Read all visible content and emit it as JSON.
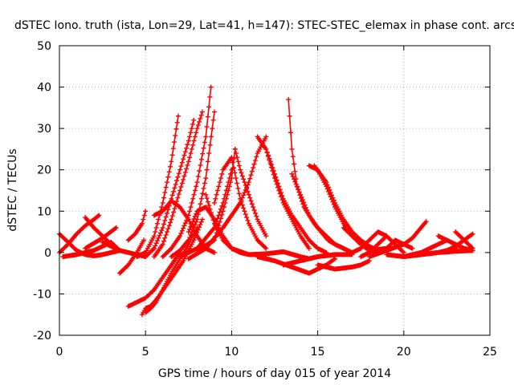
{
  "chart_data": {
    "type": "scatter",
    "title": "dSTEC Iono. truth (ista, Lon=29, Lat=41, h=147): STEC-STEC_elemax in phase cont. arcs",
    "xlabel": "GPS time / hours of day 015 of year 2014",
    "ylabel": "dSTEC  / TECUs",
    "xlim": [
      0,
      25
    ],
    "ylim": [
      -20,
      50
    ],
    "xticks": [
      "0",
      "5",
      "10",
      "15",
      "20",
      "25"
    ],
    "yticks": [
      "-20",
      "-10",
      "0",
      "10",
      "20",
      "30",
      "40",
      "50"
    ],
    "grid": true,
    "marker": "plus",
    "color": "#ff0000",
    "series": [
      {
        "x": [
          0.0,
          0.5,
          1.0,
          1.5,
          2.0,
          2.3
        ],
        "y": [
          0,
          2,
          4.5,
          6.5,
          8,
          9
        ]
      },
      {
        "x": [
          0.0,
          0.5,
          1.0,
          1.5,
          2.0,
          2.5,
          3.0,
          3.5
        ],
        "y": [
          4.5,
          2.5,
          0.5,
          -0.5,
          -0.8,
          -0.5,
          0,
          0.5
        ]
      },
      {
        "x": [
          1.5,
          2.0,
          2.5,
          3.0,
          3.5
        ],
        "y": [
          8.5,
          6,
          4,
          2,
          0.5
        ]
      },
      {
        "x": [
          0.2,
          1.0,
          2.0,
          2.5,
          3.0,
          3.5
        ],
        "y": [
          -1,
          -0.5,
          0.5,
          1.5,
          2.5,
          0.5
        ]
      },
      {
        "x": [
          1.5,
          2.5,
          3.3
        ],
        "y": [
          1,
          3.5,
          6
        ]
      },
      {
        "x": [
          3.5,
          4.0,
          4.5,
          4.9
        ],
        "y": [
          -5,
          -3,
          0,
          3
        ]
      },
      {
        "x": [
          2.5,
          3.0,
          3.5,
          4.0,
          4.5,
          5.0
        ],
        "y": [
          2.5,
          1.5,
          0.5,
          0,
          -0.5,
          -1
        ]
      },
      {
        "x": [
          4.0,
          4.4,
          4.8,
          5.0
        ],
        "y": [
          3,
          4.5,
          7,
          10
        ]
      },
      {
        "x": [
          4.0,
          4.5,
          5.0,
          5.5,
          6.0,
          6.5,
          7.0
        ],
        "y": [
          -13,
          -12,
          -11,
          -9,
          -6,
          -3,
          0
        ]
      },
      {
        "x": [
          4.8,
          5.0,
          5.3,
          5.7,
          6.2,
          6.7,
          7.2,
          7.8,
          8.3
        ],
        "y": [
          -15,
          -13.5,
          -13,
          -11,
          -8,
          -5,
          -2,
          3,
          8
        ]
      },
      {
        "x": [
          5.0,
          5.3,
          5.6,
          6.0,
          6.5,
          7.0,
          7.5,
          8.0
        ],
        "y": [
          -14.5,
          -13.5,
          -12,
          -9,
          -5,
          -1.5,
          2,
          6
        ]
      },
      {
        "x": [
          4.5,
          5.0,
          5.5,
          6.0,
          6.5,
          6.9
        ],
        "y": [
          -1,
          0,
          4,
          12,
          22,
          33
        ]
      },
      {
        "x": [
          5.0,
          5.5,
          6.0,
          6.5,
          7.0,
          7.5,
          7.8
        ],
        "y": [
          -1,
          1,
          6,
          13,
          20,
          27,
          32
        ]
      },
      {
        "x": [
          5.5,
          6.0,
          6.5,
          7.0,
          7.5,
          8.0,
          8.3
        ],
        "y": [
          -1,
          2,
          8,
          15,
          22,
          30,
          34
        ]
      },
      {
        "x": [
          6.0,
          6.5,
          7.0,
          7.5,
          8.0,
          8.5,
          8.8
        ],
        "y": [
          -1,
          1,
          4,
          9,
          17,
          28,
          40
        ]
      },
      {
        "x": [
          6.5,
          7.0,
          7.5,
          8.0,
          8.5,
          9.0
        ],
        "y": [
          -1,
          0.5,
          3,
          8,
          18,
          34
        ]
      },
      {
        "x": [
          5.5,
          6.0,
          6.5,
          7.0,
          7.5,
          8.0,
          8.5,
          9.0
        ],
        "y": [
          9,
          10,
          12.5,
          11,
          8,
          4,
          1,
          0
        ]
      },
      {
        "x": [
          7.5,
          8.0,
          8.5,
          9.0,
          9.5,
          10.0
        ],
        "y": [
          5,
          10,
          11,
          8,
          4,
          1
        ]
      },
      {
        "x": [
          8.5,
          9.0,
          9.5,
          10.0,
          10.5,
          11.0,
          11.5,
          12.0
        ],
        "y": [
          14,
          7,
          3,
          1,
          0,
          -0.5,
          -0.5,
          -0.3
        ]
      },
      {
        "x": [
          7.0,
          8.0,
          9.0,
          9.5,
          10.0
        ],
        "y": [
          -1,
          1,
          6,
          12,
          20
        ]
      },
      {
        "x": [
          7.5,
          8.5,
          9.5,
          10.5,
          11.0,
          11.5,
          12.0
        ],
        "y": [
          -1.5,
          1,
          6,
          12,
          17,
          24,
          28
        ]
      },
      {
        "x": [
          8.0,
          9.0,
          9.5,
          10.0,
          10.2
        ],
        "y": [
          0.5,
          3,
          10,
          18,
          25
        ]
      },
      {
        "x": [
          9.0,
          9.5,
          10.0,
          10.5,
          11.0,
          11.5,
          12.0
        ],
        "y": [
          12,
          20,
          23,
          13,
          7,
          3,
          1
        ]
      },
      {
        "x": [
          10.2,
          10.5,
          11.0,
          11.5,
          12.0
        ],
        "y": [
          25,
          20,
          14,
          8,
          4
        ]
      },
      {
        "x": [
          11.5,
          12.0,
          12.5,
          13.0,
          13.5,
          14.0,
          14.5
        ],
        "y": [
          28,
          25,
          18,
          12,
          8,
          4,
          1
        ]
      },
      {
        "x": [
          12.0,
          12.5,
          13.0,
          13.5,
          14.0,
          14.5,
          15.0,
          15.5
        ],
        "y": [
          25,
          19,
          13,
          9,
          6,
          3,
          1,
          0
        ]
      },
      {
        "x": [
          10.0,
          11.0,
          12.0,
          13.0,
          14.0,
          14.5,
          15.0
        ],
        "y": [
          1,
          -0.5,
          -0.3,
          0.2,
          -1,
          -1.5,
          -1
        ]
      },
      {
        "x": [
          11.5,
          12.5,
          13.5,
          14.5,
          15.5,
          16.0
        ],
        "y": [
          -1,
          -2,
          -3.5,
          -5,
          -3,
          -1.5
        ]
      },
      {
        "x": [
          13.3,
          13.5,
          13.8,
          14.2,
          14.8,
          15.2,
          15.6,
          16.0,
          16.5
        ],
        "y": [
          37,
          25,
          16,
          11,
          7,
          5,
          3,
          2,
          1
        ]
      },
      {
        "x": [
          13.5,
          14.0,
          14.5,
          15.0,
          15.5,
          16.0,
          16.5,
          17.0
        ],
        "y": [
          19,
          14,
          9,
          6,
          4,
          2,
          1,
          0
        ]
      },
      {
        "x": [
          14.5,
          15.0,
          15.5,
          16.0,
          16.5,
          17.0,
          17.5,
          18.0
        ],
        "y": [
          21,
          20,
          16,
          11,
          7,
          4,
          2,
          0.5
        ]
      },
      {
        "x": [
          14.8,
          15.5,
          16.0,
          16.5,
          17.0,
          17.5,
          18.0,
          18.5
        ],
        "y": [
          21,
          17,
          12,
          8,
          5,
          3,
          1.5,
          0.5
        ]
      },
      {
        "x": [
          13.0,
          14.0,
          15.0,
          16.0,
          17.0
        ],
        "y": [
          -3,
          -2,
          -1,
          -0.5,
          -0.5
        ]
      },
      {
        "x": [
          15.0,
          16.0,
          17.0,
          17.5,
          18.0
        ],
        "y": [
          -3,
          -4,
          -3.5,
          -3,
          -2
        ]
      },
      {
        "x": [
          16.5,
          17.0,
          17.5,
          18.0,
          18.5
        ],
        "y": [
          6,
          4,
          2,
          0.5,
          0
        ]
      },
      {
        "x": [
          17.0,
          17.5,
          18.0,
          18.5,
          19.0
        ],
        "y": [
          0,
          1,
          3,
          5,
          4
        ]
      },
      {
        "x": [
          17.5,
          18.0,
          18.5,
          19.0,
          19.5,
          20.0
        ],
        "y": [
          -1,
          0,
          2,
          4,
          2,
          0
        ]
      },
      {
        "x": [
          18.0,
          19.0,
          19.5,
          20.0,
          20.5
        ],
        "y": [
          0.5,
          1,
          3,
          2,
          1
        ]
      },
      {
        "x": [
          18.0,
          19.0,
          20.0,
          20.5,
          21.0,
          21.3
        ],
        "y": [
          -1,
          0.5,
          2,
          3.5,
          6,
          7.5
        ]
      },
      {
        "x": [
          19.0,
          20.0,
          21.0,
          22.0,
          22.5,
          23.0
        ],
        "y": [
          -0.5,
          -1,
          -0.5,
          0,
          0.5,
          1
        ]
      },
      {
        "x": [
          20.0,
          20.5,
          21.0,
          21.5,
          22.0,
          22.5
        ],
        "y": [
          -1,
          -0.5,
          0,
          1,
          2,
          3
        ]
      },
      {
        "x": [
          22.0,
          22.5,
          23.0,
          23.5,
          24.0
        ],
        "y": [
          4,
          3,
          2,
          1,
          0.5
        ]
      },
      {
        "x": [
          22.5,
          23.0,
          23.5,
          24.0
        ],
        "y": [
          0.5,
          1.5,
          3,
          4.5
        ]
      },
      {
        "x": [
          21.0,
          22.0,
          23.0,
          24.0
        ],
        "y": [
          -0.5,
          0,
          0.3,
          0.5
        ]
      },
      {
        "x": [
          23.0,
          23.5,
          24.0
        ],
        "y": [
          5,
          3,
          1
        ]
      }
    ]
  }
}
